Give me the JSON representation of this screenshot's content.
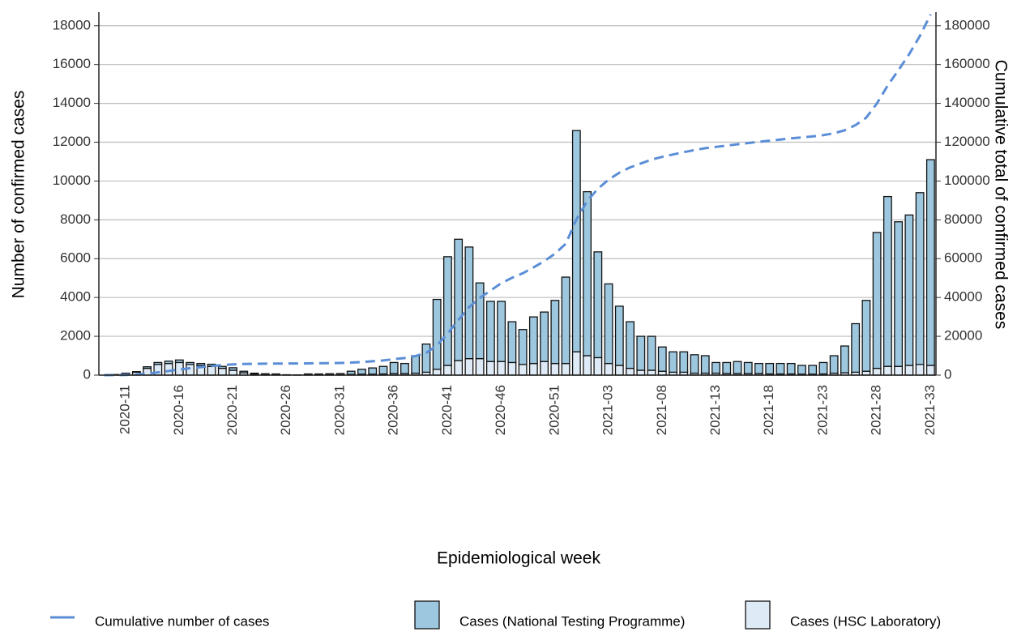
{
  "chart_data": {
    "type": "bar",
    "x_label": "Epidemiological week",
    "y_label": "Number of confirmed cases",
    "y2_label": "Cumulative total of confirmed cases",
    "categories": [
      null,
      null,
      "2020-11",
      null,
      null,
      null,
      null,
      "2020-16",
      null,
      null,
      null,
      null,
      "2020-21",
      null,
      null,
      null,
      null,
      "2020-26",
      null,
      null,
      null,
      null,
      "2020-31",
      null,
      null,
      null,
      null,
      "2020-36",
      null,
      null,
      null,
      null,
      "2020-41",
      null,
      null,
      null,
      null,
      "2020-46",
      null,
      null,
      null,
      null,
      "2020-51",
      null,
      null,
      null,
      null,
      "2021-03",
      null,
      null,
      null,
      null,
      "2021-08",
      null,
      null,
      null,
      null,
      "2021-13",
      null,
      null,
      null,
      null,
      "2021-18",
      null,
      null,
      null,
      null,
      "2021-23",
      null,
      null,
      null,
      null,
      "2021-28",
      null,
      null,
      null,
      null,
      "2021-33"
    ],
    "series": [
      {
        "name": "Cumulative number of cases",
        "type": "line",
        "axis": "y2",
        "color": "#5b8ed6",
        "values": [
          0,
          30,
          130,
          310,
          740,
          1390,
          2110,
          2890,
          3540,
          4140,
          4700,
          5150,
          5530,
          5730,
          5830,
          5900,
          5960,
          5980,
          5990,
          6050,
          6110,
          6180,
          6260,
          6460,
          6760,
          7130,
          7580,
          8230,
          8830,
          9830,
          11430,
          15330,
          21430,
          28430,
          35030,
          39780,
          43580,
          47380,
          50130,
          52480,
          55480,
          58730,
          62580,
          67630,
          80230,
          89680,
          96030,
          100730,
          104280,
          107030,
          109030,
          111030,
          112480,
          113680,
          114880,
          115930,
          116930,
          117580,
          118230,
          118930,
          119580,
          120180,
          120780,
          121380,
          121980,
          122480,
          122980,
          123630,
          124630,
          126130,
          128780,
          132630,
          139980,
          149180,
          157080,
          165330,
          174730,
          185830
        ]
      },
      {
        "name": "Cases (National Testing Programme)",
        "type": "bar",
        "color": "#9dc7de",
        "values": [
          0,
          0,
          0,
          30,
          80,
          100,
          120,
          130,
          100,
          100,
          110,
          100,
          130,
          80,
          50,
          40,
          40,
          10,
          5,
          40,
          40,
          50,
          60,
          160,
          250,
          320,
          390,
          570,
          520,
          900,
          1450,
          3600,
          5600,
          6250,
          5750,
          3900,
          3100,
          3100,
          2100,
          1800,
          2400,
          2550,
          3250,
          4450,
          11400,
          8450,
          5450,
          4100,
          3050,
          2400,
          1750,
          1750,
          1250,
          1050,
          1050,
          950,
          900,
          550,
          570,
          620,
          570,
          520,
          540,
          540,
          540,
          450,
          450,
          590,
          900,
          1380,
          2500,
          3650,
          7000,
          8750,
          7450,
          7750,
          8850,
          10600
        ]
      },
      {
        "name": "Cases (HSC Laboratory)",
        "type": "bar",
        "color": "#deebf7",
        "values": [
          0,
          30,
          100,
          150,
          350,
          550,
          600,
          650,
          550,
          500,
          450,
          350,
          250,
          120,
          50,
          30,
          20,
          10,
          5,
          20,
          20,
          20,
          20,
          40,
          50,
          50,
          60,
          80,
          80,
          100,
          150,
          300,
          500,
          750,
          850,
          850,
          700,
          700,
          650,
          550,
          600,
          700,
          600,
          600,
          1200,
          1000,
          900,
          600,
          500,
          350,
          250,
          250,
          200,
          150,
          150,
          100,
          100,
          100,
          80,
          80,
          80,
          80,
          60,
          60,
          60,
          50,
          50,
          60,
          100,
          120,
          150,
          200,
          350,
          450,
          450,
          500,
          550,
          500
        ]
      }
    ],
    "ylim": [
      0,
      18700
    ],
    "yticks": [
      0,
      2000,
      4000,
      6000,
      8000,
      10000,
      12000,
      14000,
      16000,
      18000
    ],
    "y2lim": [
      0,
      187000
    ],
    "y2ticks": [
      0,
      20000,
      40000,
      60000,
      80000,
      100000,
      120000,
      140000,
      160000,
      180000
    ],
    "grid": true,
    "legend": "bottom"
  }
}
